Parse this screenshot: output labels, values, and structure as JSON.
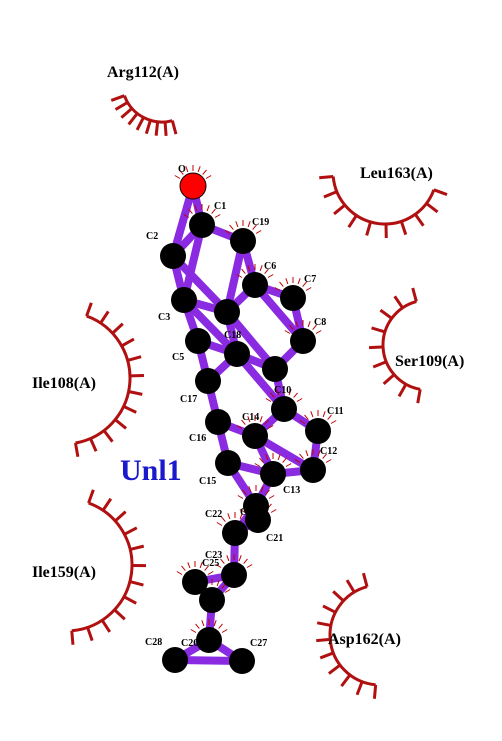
{
  "ligand": {
    "name": "Unl1",
    "color": "#1a1acc"
  },
  "colors": {
    "bond": "#8a2be2",
    "carbon": "#000000",
    "oxygen": "#ff0000",
    "arc": "#b01010",
    "tick": "#c00000"
  },
  "residues": [
    {
      "id": "arg112",
      "label": "Arg112(A)"
    },
    {
      "id": "leu163",
      "label": "Leu163(A)"
    },
    {
      "id": "ser109",
      "label": "Ser109(A)"
    },
    {
      "id": "ile108",
      "label": "Ile108(A)"
    },
    {
      "id": "ile159",
      "label": "Ile159(A)"
    },
    {
      "id": "asp162",
      "label": "Asp162(A)"
    }
  ],
  "atoms": [
    {
      "id": "O",
      "label": "O",
      "element": "O"
    },
    {
      "id": "C1",
      "label": "C1",
      "element": "C"
    },
    {
      "id": "C19",
      "label": "C19",
      "element": "C"
    },
    {
      "id": "C2",
      "label": "C2",
      "element": "C"
    },
    {
      "id": "C6",
      "label": "C6",
      "element": "C"
    },
    {
      "id": "C7",
      "label": "C7",
      "element": "C"
    },
    {
      "id": "C4",
      "label": "",
      "element": "C"
    },
    {
      "id": "C3",
      "label": "C3",
      "element": "C"
    },
    {
      "id": "C8",
      "label": "C8",
      "element": "C"
    },
    {
      "id": "C5",
      "label": "C5",
      "element": "C"
    },
    {
      "id": "C18",
      "label": "C18",
      "element": "C"
    },
    {
      "id": "C9",
      "label": "",
      "element": "C"
    },
    {
      "id": "C17",
      "label": "C17",
      "element": "C"
    },
    {
      "id": "C10",
      "label": "C10",
      "element": "C"
    },
    {
      "id": "C11",
      "label": "C11",
      "element": "C"
    },
    {
      "id": "C16",
      "label": "C16",
      "element": "C"
    },
    {
      "id": "C14",
      "label": "C14",
      "element": "C"
    },
    {
      "id": "C12",
      "label": "C12",
      "element": "C"
    },
    {
      "id": "C15",
      "label": "C15",
      "element": "C"
    },
    {
      "id": "C13",
      "label": "C13",
      "element": "C"
    },
    {
      "id": "C20",
      "label": "C20",
      "element": "C"
    },
    {
      "id": "C21",
      "label": "C21",
      "element": "C"
    },
    {
      "id": "C22",
      "label": "C22",
      "element": "C"
    },
    {
      "id": "C23",
      "label": "C23",
      "element": "C"
    },
    {
      "id": "C25",
      "label": "C25",
      "element": "C"
    },
    {
      "id": "C24",
      "label": "",
      "element": "C"
    },
    {
      "id": "C26",
      "label": "C26",
      "element": "C"
    },
    {
      "id": "C28",
      "label": "C28",
      "element": "C"
    },
    {
      "id": "C27",
      "label": "C27",
      "element": "C"
    }
  ]
}
